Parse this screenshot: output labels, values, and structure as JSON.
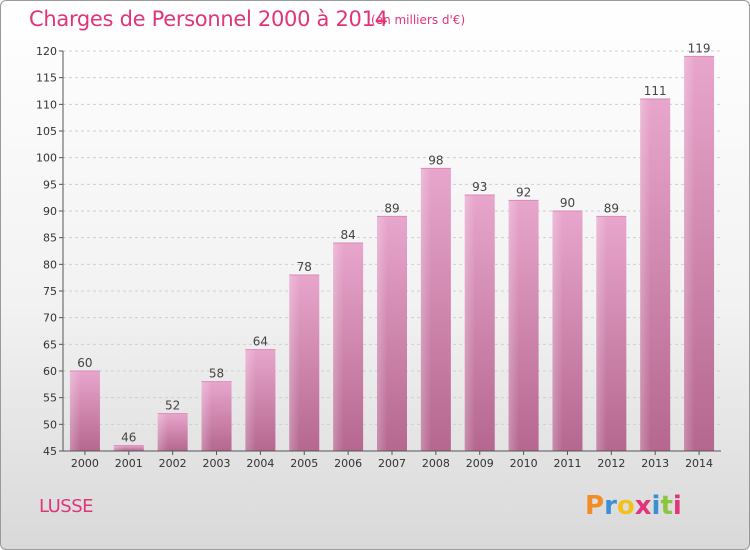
{
  "header": {
    "title": "Charges de Personnel 2000 à 2014",
    "subtitle": "(en milliers d'€)"
  },
  "footer": {
    "commune": "LUSSE",
    "logo_text": "Proxiti"
  },
  "colors": {
    "title": "#e0357a",
    "bar_light": "#e8a6cc",
    "bar_dark": "#b5678f",
    "logo": [
      "#f28c28",
      "#3a8fd6",
      "#f2c21b",
      "#e0357a",
      "#3a8fd6",
      "#8cc63f",
      "#e0357a"
    ]
  },
  "chart_data": {
    "type": "bar",
    "categories": [
      "2000",
      "2001",
      "2002",
      "2003",
      "2004",
      "2005",
      "2006",
      "2007",
      "2008",
      "2009",
      "2010",
      "2011",
      "2012",
      "2013",
      "2014"
    ],
    "values": [
      60,
      46,
      52,
      58,
      64,
      78,
      84,
      89,
      98,
      93,
      92,
      90,
      89,
      111,
      119
    ],
    "title": "Charges de Personnel 2000 à 2014",
    "subtitle": "(en milliers d'€)",
    "xlabel": "",
    "ylabel": "",
    "ylim": [
      45,
      120
    ],
    "yticks": [
      45,
      50,
      55,
      60,
      65,
      70,
      75,
      80,
      85,
      90,
      95,
      100,
      105,
      110,
      115,
      120
    ],
    "grid": true
  }
}
